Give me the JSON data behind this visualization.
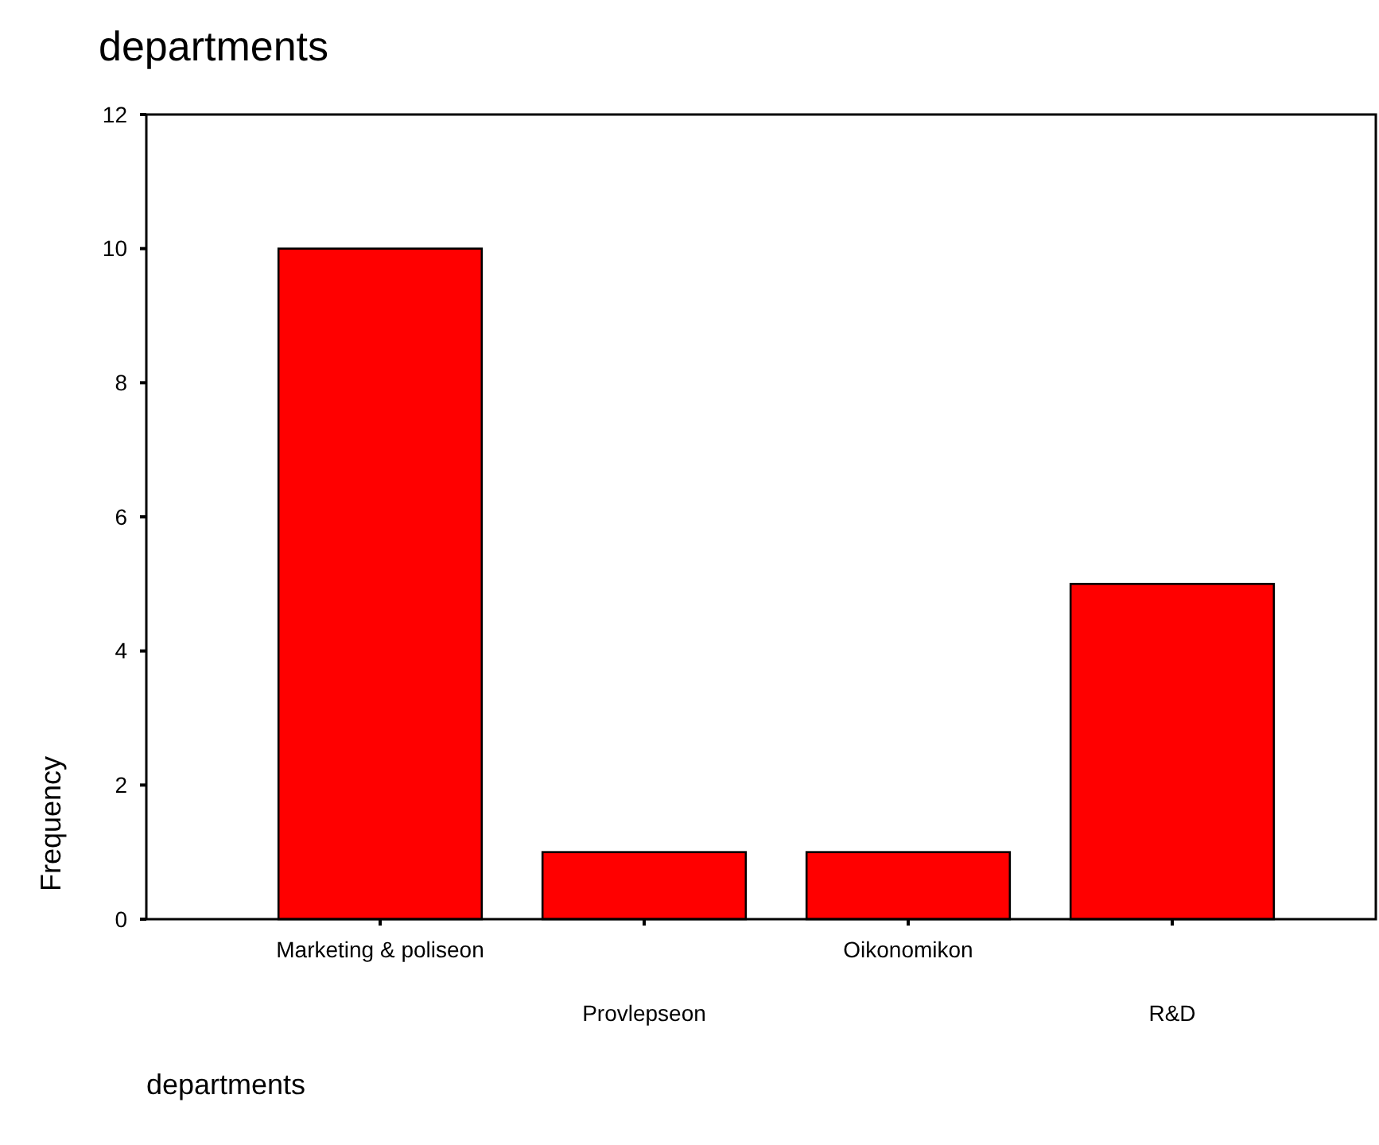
{
  "chart_data": {
    "type": "bar",
    "title": "departments",
    "xlabel": "departments",
    "ylabel": "Frequency",
    "categories": [
      "Marketing & poliseon",
      "Provlepseon",
      "Oikonomikon",
      "R&D"
    ],
    "values": [
      10,
      1,
      1,
      5
    ],
    "color": "#ff0000",
    "ylim": [
      0,
      12
    ],
    "yticks": [
      0,
      2,
      4,
      6,
      8,
      10,
      12
    ],
    "grid": false
  }
}
